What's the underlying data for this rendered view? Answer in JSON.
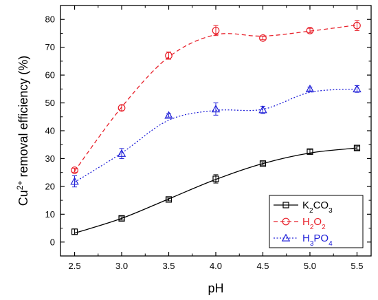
{
  "chart_data": {
    "type": "line",
    "xlabel": "pH",
    "ylabel_parts": {
      "pre": "Cu",
      "sup": "2+",
      "post": " removal efficiency (%)"
    },
    "xlim": [
      2.35,
      5.65
    ],
    "ylim": [
      -5,
      85
    ],
    "xticks": [
      2.5,
      3.0,
      3.5,
      4.0,
      4.5,
      5.0,
      5.5
    ],
    "xtick_labels": [
      "2.5",
      "3.0",
      "3.5",
      "4.0",
      "4.5",
      "5.0",
      "5.5"
    ],
    "yticks": [
      0,
      10,
      20,
      30,
      40,
      50,
      60,
      70,
      80
    ],
    "ytick_labels": [
      "0",
      "10",
      "20",
      "30",
      "40",
      "50",
      "60",
      "70",
      "80"
    ],
    "grid": false,
    "legend_position": "bottom-right",
    "series": [
      {
        "legend_parts": [
          [
            "K",
            false
          ],
          [
            "2",
            true
          ],
          [
            "CO",
            false
          ],
          [
            "3",
            true
          ]
        ],
        "color": "#000000",
        "marker": "square",
        "dash": "solid",
        "x": [
          2.5,
          3.0,
          3.5,
          4.0,
          4.5,
          5.0,
          5.5
        ],
        "y": [
          3.7,
          8.5,
          15.3,
          22.7,
          28.2,
          32.5,
          33.8
        ],
        "err": [
          1.0,
          0.6,
          0.5,
          1.5,
          0.6,
          0.8,
          0.7
        ],
        "fit": [
          3.2,
          8.5,
          15.5,
          22.5,
          28.2,
          32.0,
          33.8
        ]
      },
      {
        "legend_parts": [
          [
            "H",
            false
          ],
          [
            "2",
            true
          ],
          [
            "O",
            false
          ],
          [
            "2",
            true
          ]
        ],
        "color": "#e8202a",
        "marker": "circle",
        "dash": "dashed",
        "x": [
          2.5,
          3.0,
          3.5,
          4.0,
          4.5,
          5.0,
          5.5
        ],
        "y": [
          25.8,
          48.2,
          67.0,
          76.0,
          73.3,
          76.0,
          77.8
        ],
        "err": [
          0.7,
          1.0,
          1.3,
          1.8,
          0.6,
          0.8,
          1.8
        ],
        "fit": [
          25.5,
          48.5,
          66.5,
          74.5,
          74.0,
          75.8,
          78.0
        ]
      },
      {
        "legend_parts": [
          [
            "H",
            false
          ],
          [
            "3",
            true
          ],
          [
            "PO",
            false
          ],
          [
            "4",
            true
          ]
        ],
        "color": "#2020d8",
        "marker": "triangle",
        "dash": "dotted",
        "x": [
          2.5,
          3.0,
          3.5,
          4.0,
          4.5,
          5.0,
          5.5
        ],
        "y": [
          21.8,
          31.8,
          45.5,
          47.8,
          47.5,
          55.0,
          55.0
        ],
        "err": [
          2.0,
          1.8,
          0.6,
          2.2,
          1.3,
          0.7,
          1.2
        ],
        "fit": [
          21.5,
          32.0,
          43.8,
          47.3,
          47.7,
          53.8,
          55.0
        ]
      }
    ]
  }
}
